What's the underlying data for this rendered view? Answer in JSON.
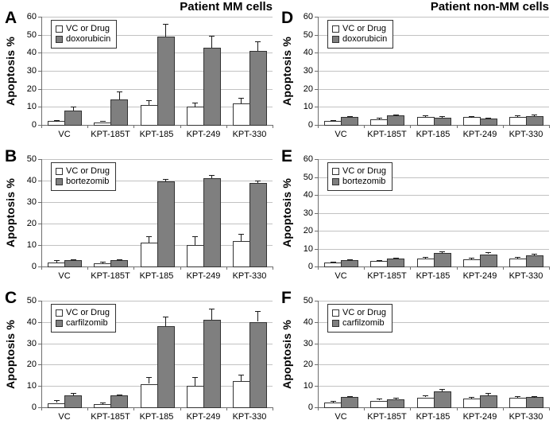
{
  "figure": {
    "column_titles": [
      "Patient MM cells",
      "Patient non-MM cells"
    ],
    "y_axis_title": "Apoptosis %",
    "categories": [
      "VC",
      "KPT-185T",
      "KPT-185",
      "KPT-249",
      "KPT-330"
    ],
    "colors": {
      "bar_white": "#ffffff",
      "bar_gray": "#7f7f7f",
      "bar_border": "#333333",
      "gridline": "#c2c2c2",
      "axis": "#6e6e6e",
      "error_bar": "#1a1a1a",
      "text": "#000000",
      "background": "#ffffff"
    }
  },
  "chart_data": [
    {
      "type": "bar",
      "panel_letter": "A",
      "title": "Patient MM cells",
      "ylabel": "Apoptosis %",
      "categories": [
        "VC",
        "KPT-185T",
        "KPT-185",
        "KPT-249",
        "KPT-330"
      ],
      "ylim": [
        0,
        60
      ],
      "yticks": [
        0,
        10,
        20,
        30,
        40,
        50,
        60
      ],
      "legend": [
        "VC or Drug",
        "doxorubicin"
      ],
      "series": [
        {
          "name": "VC or Drug",
          "fill": "white",
          "values": [
            2,
            1.5,
            11,
            10,
            12
          ],
          "errors": [
            0.7,
            0.5,
            2.5,
            2.5,
            3
          ]
        },
        {
          "name": "doxorubicin",
          "fill": "gray",
          "values": [
            8,
            14,
            49,
            43,
            41
          ],
          "errors": [
            2,
            4.5,
            7,
            6.5,
            5.5
          ]
        }
      ]
    },
    {
      "type": "bar",
      "panel_letter": "B",
      "title": null,
      "ylabel": "Apoptosis %",
      "categories": [
        "VC",
        "KPT-185T",
        "KPT-185",
        "KPT-249",
        "KPT-330"
      ],
      "ylim": [
        0,
        50
      ],
      "yticks": [
        0,
        10,
        20,
        30,
        40,
        50
      ],
      "legend": [
        "VC or Drug",
        "bortezomib"
      ],
      "series": [
        {
          "name": "VC or Drug",
          "fill": "white",
          "values": [
            2,
            1.5,
            11,
            10,
            12
          ],
          "errors": [
            1,
            0.8,
            3,
            4,
            3.3
          ]
        },
        {
          "name": "bortezomib",
          "fill": "gray",
          "values": [
            3,
            2.8,
            39.5,
            41,
            39
          ],
          "errors": [
            0.5,
            0.4,
            1.2,
            1.5,
            1
          ]
        }
      ]
    },
    {
      "type": "bar",
      "panel_letter": "C",
      "title": null,
      "ylabel": "Apoptosis %",
      "categories": [
        "VC",
        "KPT-185T",
        "KPT-185",
        "KPT-249",
        "KPT-330"
      ],
      "ylim": [
        0,
        50
      ],
      "yticks": [
        0,
        10,
        20,
        30,
        40,
        50
      ],
      "legend": [
        "VC or Drug",
        "carfilzomib"
      ],
      "series": [
        {
          "name": "VC or Drug",
          "fill": "white",
          "values": [
            2,
            1.5,
            11,
            10,
            12.2
          ],
          "errors": [
            1.2,
            0.7,
            3,
            4,
            3
          ]
        },
        {
          "name": "carfilzomib",
          "fill": "gray",
          "values": [
            5.6,
            5.5,
            38,
            41,
            40
          ],
          "errors": [
            1.3,
            0.4,
            4.5,
            5.3,
            5
          ]
        }
      ]
    },
    {
      "type": "bar",
      "panel_letter": "D",
      "title": "Patient non-MM cells",
      "ylabel": "Apoptosis %",
      "categories": [
        "VC",
        "KPT-185T",
        "KPT-185",
        "KPT-249",
        "KPT-330"
      ],
      "ylim": [
        0,
        60
      ],
      "yticks": [
        0,
        10,
        20,
        30,
        40,
        50,
        60
      ],
      "legend": [
        "VC or Drug",
        "doxorubicin"
      ],
      "series": [
        {
          "name": "VC or Drug",
          "fill": "white",
          "values": [
            2.2,
            3,
            4.6,
            4.2,
            4.4
          ],
          "errors": [
            0.6,
            0.8,
            0.8,
            0.7,
            1
          ]
        },
        {
          "name": "doxorubicin",
          "fill": "gray",
          "values": [
            4.4,
            5.1,
            3.9,
            3.5,
            4.7
          ],
          "errors": [
            0.5,
            0.7,
            0.8,
            0.6,
            0.9
          ]
        }
      ]
    },
    {
      "type": "bar",
      "panel_letter": "E",
      "title": null,
      "ylabel": "Apoptosis %",
      "categories": [
        "VC",
        "KPT-185T",
        "KPT-185",
        "KPT-249",
        "KPT-330"
      ],
      "ylim": [
        0,
        60
      ],
      "yticks": [
        0,
        10,
        20,
        30,
        40,
        50,
        60
      ],
      "legend": [
        "VC or Drug",
        "bortezomib"
      ],
      "series": [
        {
          "name": "VC or Drug",
          "fill": "white",
          "values": [
            2.2,
            3,
            4.5,
            4,
            4.3
          ],
          "errors": [
            0.5,
            0.7,
            0.8,
            0.9,
            1
          ]
        },
        {
          "name": "bortezomib",
          "fill": "gray",
          "values": [
            3.4,
            4.5,
            7.6,
            6.8,
            6.3
          ],
          "errors": [
            0.5,
            0.6,
            1,
            1.1,
            0.9
          ]
        }
      ]
    },
    {
      "type": "bar",
      "panel_letter": "F",
      "title": null,
      "ylabel": "Apoptosis %",
      "categories": [
        "VC",
        "KPT-185T",
        "KPT-185",
        "KPT-249",
        "KPT-330"
      ],
      "ylim": [
        0,
        50
      ],
      "yticks": [
        0,
        10,
        20,
        30,
        40,
        50
      ],
      "legend": [
        "VC or Drug",
        "carfilzomib"
      ],
      "series": [
        {
          "name": "VC or Drug",
          "fill": "white",
          "values": [
            2.2,
            3.1,
            4.6,
            4.1,
            4.3
          ],
          "errors": [
            0.7,
            0.9,
            0.9,
            0.7,
            0.9
          ]
        },
        {
          "name": "carfilzomib",
          "fill": "gray",
          "values": [
            4.8,
            3.8,
            7.3,
            5.7,
            4.7
          ],
          "errors": [
            0.4,
            0.6,
            1.1,
            1,
            0.7
          ]
        }
      ]
    }
  ]
}
